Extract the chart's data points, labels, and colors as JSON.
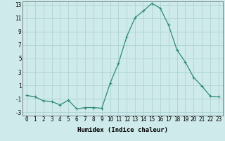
{
  "x": [
    0,
    1,
    2,
    3,
    4,
    5,
    6,
    7,
    8,
    9,
    10,
    11,
    12,
    13,
    14,
    15,
    16,
    17,
    18,
    19,
    20,
    21,
    22,
    23
  ],
  "y": [
    -0.5,
    -0.7,
    -1.3,
    -1.4,
    -1.9,
    -1.2,
    -2.5,
    -2.3,
    -2.3,
    -2.4,
    1.3,
    4.3,
    8.3,
    11.1,
    12.1,
    13.2,
    12.5,
    10.0,
    6.3,
    4.5,
    2.2,
    0.9,
    -0.6,
    -0.7
  ],
  "line_color": "#2e8b74",
  "marker": "+",
  "marker_size": 3,
  "marker_linewidth": 0.8,
  "line_width": 0.9,
  "bg_color": "#ceeaea",
  "grid_color": "#aed4d4",
  "xlabel": "Humidex (Indice chaleur)",
  "xlim": [
    -0.5,
    23.5
  ],
  "ylim": [
    -3.5,
    13.5
  ],
  "yticks": [
    -3,
    -1,
    1,
    3,
    5,
    7,
    9,
    11,
    13
  ],
  "xticks": [
    0,
    1,
    2,
    3,
    4,
    5,
    6,
    7,
    8,
    9,
    10,
    11,
    12,
    13,
    14,
    15,
    16,
    17,
    18,
    19,
    20,
    21,
    22,
    23
  ],
  "tick_fontsize": 5.5,
  "xlabel_fontsize": 6.5
}
